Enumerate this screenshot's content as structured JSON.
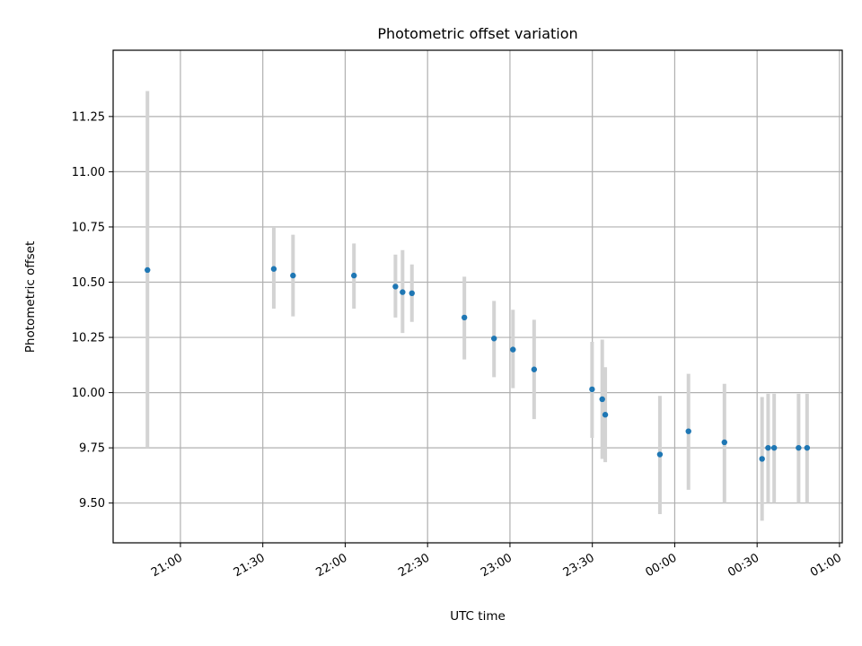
{
  "chart_data": {
    "type": "scatter",
    "title": "Photometric offset variation",
    "xlabel": "UTC time",
    "ylabel": "Photometric offset",
    "grid": true,
    "x_tick_labels": [
      "21:00",
      "21:30",
      "22:00",
      "22:30",
      "23:00",
      "23:30",
      "00:00",
      "00:30",
      "01:00"
    ],
    "x_tick_minutes": [
      1260,
      1290,
      1320,
      1350,
      1380,
      1410,
      1440,
      1470,
      1500
    ],
    "x_range_minutes": [
      1235.5,
      1501
    ],
    "y_tick_labels": [
      "9.50",
      "9.75",
      "10.00",
      "10.25",
      "10.50",
      "10.75",
      "11.00",
      "11.25"
    ],
    "y_ticks": [
      9.5,
      9.75,
      10.0,
      10.25,
      10.5,
      10.75,
      11.0,
      11.25
    ],
    "ylim": [
      9.32,
      11.55
    ],
    "series": [
      {
        "points": [
          {
            "time": "20:48",
            "t": 1248.0,
            "y": 10.555,
            "ylo": 9.75,
            "yhi": 11.365
          },
          {
            "time": "21:34",
            "t": 1294.0,
            "y": 10.56,
            "ylo": 10.38,
            "yhi": 10.75
          },
          {
            "time": "21:41",
            "t": 1301.0,
            "y": 10.53,
            "ylo": 10.345,
            "yhi": 10.715
          },
          {
            "time": "22:03",
            "t": 1323.2,
            "y": 10.53,
            "ylo": 10.38,
            "yhi": 10.675
          },
          {
            "time": "22:18",
            "t": 1338.3,
            "y": 10.48,
            "ylo": 10.34,
            "yhi": 10.625
          },
          {
            "time": "22:21",
            "t": 1340.9,
            "y": 10.455,
            "ylo": 10.27,
            "yhi": 10.645
          },
          {
            "time": "22:24",
            "t": 1344.3,
            "y": 10.45,
            "ylo": 10.32,
            "yhi": 10.58
          },
          {
            "time": "22:43",
            "t": 1363.4,
            "y": 10.34,
            "ylo": 10.15,
            "yhi": 10.525
          },
          {
            "time": "22:53",
            "t": 1374.2,
            "y": 10.245,
            "ylo": 10.07,
            "yhi": 10.415
          },
          {
            "time": "23:01",
            "t": 1381.1,
            "y": 10.195,
            "ylo": 10.02,
            "yhi": 10.375
          },
          {
            "time": "23:09",
            "t": 1388.8,
            "y": 10.105,
            "ylo": 9.88,
            "yhi": 10.33
          },
          {
            "time": "23:30",
            "t": 1409.9,
            "y": 10.015,
            "ylo": 9.795,
            "yhi": 10.23
          },
          {
            "time": "23:34",
            "t": 1413.6,
            "y": 9.97,
            "ylo": 9.7,
            "yhi": 10.24
          },
          {
            "time": "23:35",
            "t": 1414.7,
            "y": 9.9,
            "ylo": 9.685,
            "yhi": 10.115
          },
          {
            "time": "23:55",
            "t": 1434.6,
            "y": 9.72,
            "ylo": 9.45,
            "yhi": 9.985
          },
          {
            "time": "00:05",
            "t": 1445.0,
            "y": 9.825,
            "ylo": 9.56,
            "yhi": 10.085
          },
          {
            "time": "00:18",
            "t": 1458.1,
            "y": 9.775,
            "ylo": 9.5,
            "yhi": 10.04
          },
          {
            "time": "00:32",
            "t": 1471.8,
            "y": 9.7,
            "ylo": 9.42,
            "yhi": 9.98
          },
          {
            "time": "00:34",
            "t": 1474.0,
            "y": 9.75,
            "ylo": 9.5,
            "yhi": 9.995
          },
          {
            "time": "00:36",
            "t": 1476.2,
            "y": 9.75,
            "ylo": 9.5,
            "yhi": 9.995
          },
          {
            "time": "00:45",
            "t": 1485.1,
            "y": 9.75,
            "ylo": 9.5,
            "yhi": 9.995
          },
          {
            "time": "00:48",
            "t": 1488.2,
            "y": 9.75,
            "ylo": 9.5,
            "yhi": 9.995
          }
        ]
      }
    ]
  }
}
